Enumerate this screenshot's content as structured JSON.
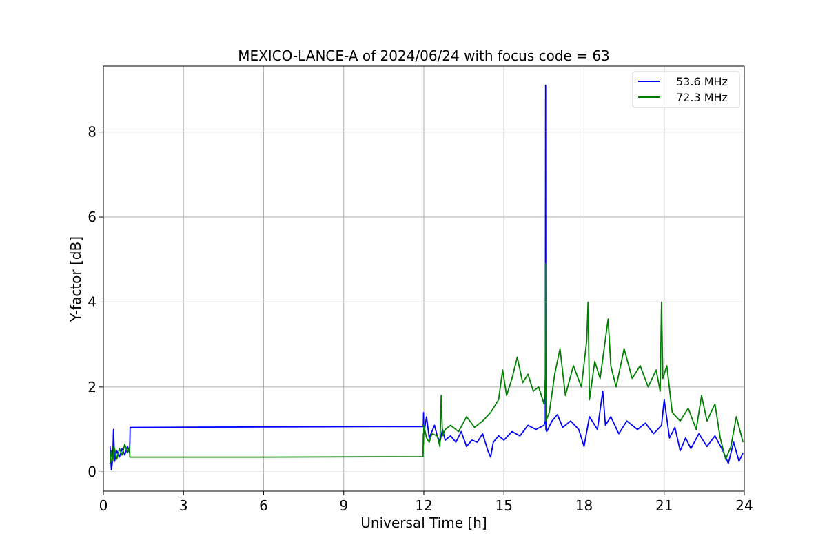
{
  "chart_data": {
    "type": "line",
    "title": "MEXICO-LANCE-A of 2024/06/24 with focus code = 63",
    "xlabel": "Universal Time [h]",
    "ylabel": "Y-factor [dB]",
    "xlim": [
      0,
      24
    ],
    "ylim": [
      -0.45,
      9.55
    ],
    "xticks": [
      0,
      3,
      6,
      9,
      12,
      15,
      18,
      21,
      24
    ],
    "yticks": [
      0,
      2,
      4,
      6,
      8
    ],
    "grid": true,
    "legend_position": "top-right",
    "series": [
      {
        "name": "53.6 MHz",
        "color": "#0000ff",
        "x": [
          0.25,
          0.3,
          0.35,
          0.38,
          0.42,
          0.5,
          0.6,
          0.7,
          0.8,
          0.9,
          0.98,
          0.99,
          1.0,
          6.0,
          11.98,
          11.99,
          12.0,
          12.1,
          12.2,
          12.3,
          12.4,
          12.5,
          12.6,
          12.7,
          12.8,
          13.0,
          13.2,
          13.4,
          13.6,
          13.8,
          14.0,
          14.2,
          14.4,
          14.5,
          14.6,
          14.8,
          15.0,
          15.3,
          15.6,
          15.9,
          16.2,
          16.5,
          16.55,
          16.56,
          16.57,
          16.6,
          16.8,
          17.0,
          17.2,
          17.5,
          17.8,
          18.0,
          18.2,
          18.5,
          18.7,
          18.8,
          19.0,
          19.3,
          19.6,
          20.0,
          20.3,
          20.6,
          20.9,
          21.0,
          21.2,
          21.4,
          21.6,
          21.8,
          22.0,
          22.3,
          22.6,
          22.9,
          23.2,
          23.4,
          23.6,
          23.8,
          23.95
        ],
        "y": [
          0.6,
          0.05,
          0.3,
          1.0,
          0.25,
          0.5,
          0.35,
          0.55,
          0.4,
          0.6,
          0.45,
          0.7,
          1.05,
          1.06,
          1.07,
          1.4,
          0.9,
          1.3,
          0.8,
          0.95,
          1.1,
          0.85,
          0.7,
          1.0,
          0.75,
          0.85,
          0.7,
          0.95,
          0.6,
          0.75,
          0.7,
          0.9,
          0.5,
          0.35,
          0.7,
          0.85,
          0.75,
          0.95,
          0.85,
          1.1,
          1.0,
          1.1,
          1.2,
          9.1,
          1.0,
          0.95,
          1.2,
          1.35,
          1.05,
          1.2,
          1.0,
          0.6,
          1.3,
          1.0,
          1.9,
          1.1,
          1.3,
          0.9,
          1.2,
          1.0,
          1.15,
          0.9,
          1.1,
          1.7,
          0.8,
          1.05,
          0.5,
          0.8,
          0.55,
          0.9,
          0.6,
          0.85,
          0.5,
          0.2,
          0.7,
          0.25,
          0.45
        ]
      },
      {
        "name": "72.3 MHz",
        "color": "#008000",
        "x": [
          0.25,
          0.3,
          0.35,
          0.4,
          0.5,
          0.6,
          0.7,
          0.8,
          0.9,
          0.98,
          0.99,
          1.0,
          6.0,
          11.97,
          11.98,
          11.99,
          12.0,
          12.1,
          12.2,
          12.3,
          12.5,
          12.6,
          12.65,
          12.7,
          12.8,
          13.0,
          13.3,
          13.6,
          13.9,
          14.2,
          14.5,
          14.8,
          14.95,
          15.1,
          15.3,
          15.5,
          15.7,
          15.9,
          16.1,
          16.3,
          16.5,
          16.55,
          16.56,
          16.57,
          16.7,
          16.9,
          17.1,
          17.3,
          17.6,
          17.9,
          18.1,
          18.15,
          18.2,
          18.4,
          18.6,
          18.9,
          19.0,
          19.2,
          19.5,
          19.8,
          20.1,
          20.4,
          20.7,
          20.85,
          20.9,
          20.95,
          21.1,
          21.3,
          21.6,
          21.9,
          22.2,
          22.4,
          22.6,
          22.9,
          23.1,
          23.3,
          23.5,
          23.7,
          23.95
        ],
        "y": [
          0.2,
          0.5,
          0.25,
          0.6,
          0.3,
          0.55,
          0.4,
          0.65,
          0.45,
          0.6,
          0.35,
          0.35,
          0.35,
          0.36,
          0.9,
          0.65,
          1.1,
          0.8,
          0.7,
          0.9,
          0.85,
          0.6,
          1.8,
          0.85,
          1.0,
          1.1,
          0.95,
          1.3,
          1.05,
          1.2,
          1.4,
          1.7,
          2.4,
          1.8,
          2.2,
          2.7,
          2.1,
          2.3,
          1.9,
          2.0,
          1.6,
          2.2,
          4.9,
          1.2,
          1.4,
          2.3,
          2.9,
          1.8,
          2.5,
          2.0,
          3.1,
          4.0,
          1.7,
          2.6,
          2.2,
          3.6,
          2.5,
          2.0,
          2.9,
          2.2,
          2.5,
          2.0,
          2.4,
          1.9,
          4.0,
          2.2,
          2.5,
          1.4,
          1.2,
          1.5,
          1.0,
          1.8,
          1.2,
          1.6,
          0.8,
          0.3,
          0.6,
          1.3,
          0.7
        ]
      }
    ]
  }
}
